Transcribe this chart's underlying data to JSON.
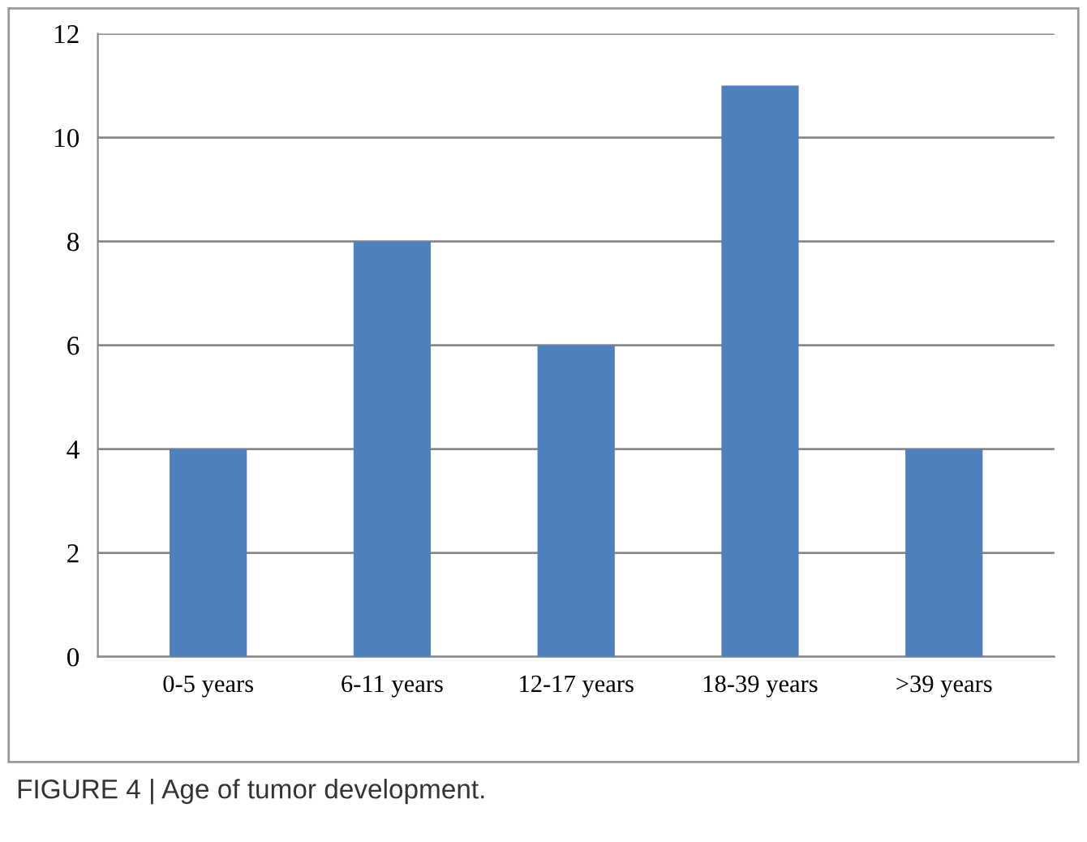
{
  "chart_data": {
    "type": "bar",
    "categories": [
      "0-5 years",
      "6-11 years",
      "12-17 years",
      "18-39 years",
      ">39 years"
    ],
    "values": [
      4,
      8,
      6,
      11,
      4
    ],
    "color": "#4f81bd",
    "ylim": [
      0,
      12
    ],
    "yticks": [
      0,
      2,
      4,
      6,
      8,
      10,
      12
    ],
    "grid": "y",
    "annotations": [
      "FIGURE 4 | Age of tumor development."
    ]
  }
}
